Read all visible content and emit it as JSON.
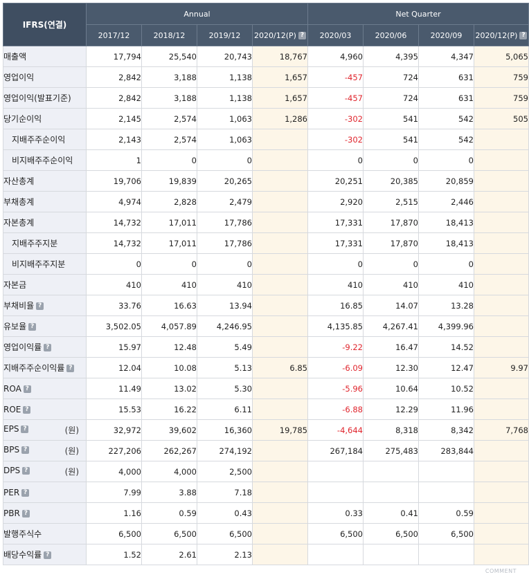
{
  "header": {
    "corner": "IFRS(연결)",
    "group_annual": "Annual",
    "group_quarter": "Net Quarter",
    "periods": [
      "2017/12",
      "2018/12",
      "2019/12",
      "2020/12(P)",
      "2020/03",
      "2020/06",
      "2020/09",
      "2020/12(P)"
    ],
    "projected_cols": [
      3,
      7
    ]
  },
  "rows": [
    {
      "label": "매출액",
      "values": [
        "17,794",
        "25,540",
        "20,743",
        "18,767",
        "4,960",
        "4,395",
        "4,347",
        "5,065"
      ]
    },
    {
      "label": "영업이익",
      "values": [
        "2,842",
        "3,188",
        "1,138",
        "1,657",
        "-457",
        "724",
        "631",
        "759"
      ]
    },
    {
      "label": "영업이익(발표기준)",
      "values": [
        "2,842",
        "3,188",
        "1,138",
        "1,657",
        "-457",
        "724",
        "631",
        "759"
      ]
    },
    {
      "label": "당기순이익",
      "values": [
        "2,145",
        "2,574",
        "1,063",
        "1,286",
        "-302",
        "541",
        "542",
        "505"
      ]
    },
    {
      "label": "지배주주순이익",
      "values": [
        "2,143",
        "2,574",
        "1,063",
        "",
        "-302",
        "541",
        "542",
        ""
      ],
      "sub": true
    },
    {
      "label": "비지배주주순이익",
      "values": [
        "1",
        "0",
        "0",
        "",
        "0",
        "0",
        "0",
        ""
      ],
      "sub": true
    },
    {
      "label": "자산총계",
      "values": [
        "19,706",
        "19,839",
        "20,265",
        "",
        "20,251",
        "20,385",
        "20,859",
        ""
      ]
    },
    {
      "label": "부채총계",
      "values": [
        "4,974",
        "2,828",
        "2,479",
        "",
        "2,920",
        "2,515",
        "2,446",
        ""
      ]
    },
    {
      "label": "자본총계",
      "values": [
        "14,732",
        "17,011",
        "17,786",
        "",
        "17,331",
        "17,870",
        "18,413",
        ""
      ]
    },
    {
      "label": "지배주주지분",
      "values": [
        "14,732",
        "17,011",
        "17,786",
        "",
        "17,331",
        "17,870",
        "18,413",
        ""
      ],
      "sub": true
    },
    {
      "label": "비지배주주지분",
      "values": [
        "0",
        "0",
        "0",
        "",
        "0",
        "0",
        "0",
        ""
      ],
      "sub": true
    },
    {
      "label": "자본금",
      "values": [
        "410",
        "410",
        "410",
        "",
        "410",
        "410",
        "410",
        ""
      ]
    },
    {
      "label": "부채비율",
      "help": true,
      "values": [
        "33.76",
        "16.63",
        "13.94",
        "",
        "16.85",
        "14.07",
        "13.28",
        ""
      ]
    },
    {
      "label": "유보율",
      "help": true,
      "values": [
        "3,502.05",
        "4,057.89",
        "4,246.95",
        "",
        "4,135.85",
        "4,267.41",
        "4,399.96",
        ""
      ]
    },
    {
      "label": "영업이익률",
      "help": true,
      "values": [
        "15.97",
        "12.48",
        "5.49",
        "",
        "-9.22",
        "16.47",
        "14.52",
        ""
      ]
    },
    {
      "label": "지배주주순이익률",
      "help": true,
      "values": [
        "12.04",
        "10.08",
        "5.13",
        "6.85",
        "-6.09",
        "12.30",
        "12.47",
        "9.97"
      ]
    },
    {
      "label": "ROA",
      "help": true,
      "values": [
        "11.49",
        "13.02",
        "5.30",
        "",
        "-5.96",
        "10.64",
        "10.52",
        ""
      ]
    },
    {
      "label": "ROE",
      "help": true,
      "values": [
        "15.53",
        "16.22",
        "6.11",
        "",
        "-6.88",
        "12.29",
        "11.96",
        ""
      ]
    },
    {
      "label": "EPS",
      "help": true,
      "unit": "(원)",
      "values": [
        "32,972",
        "39,602",
        "16,360",
        "19,785",
        "-4,644",
        "8,318",
        "8,342",
        "7,768"
      ]
    },
    {
      "label": "BPS",
      "help": true,
      "unit": "(원)",
      "values": [
        "227,206",
        "262,267",
        "274,192",
        "",
        "267,184",
        "275,483",
        "283,844",
        ""
      ]
    },
    {
      "label": "DPS",
      "help": true,
      "unit": "(원)",
      "values": [
        "4,000",
        "4,000",
        "2,500",
        "",
        "",
        "",
        "",
        ""
      ]
    },
    {
      "label": "PER",
      "help": true,
      "values": [
        "7.99",
        "3.88",
        "7.18",
        "",
        "",
        "",
        "",
        ""
      ]
    },
    {
      "label": "PBR",
      "help": true,
      "values": [
        "1.16",
        "0.59",
        "0.43",
        "",
        "0.33",
        "0.41",
        "0.59",
        ""
      ]
    },
    {
      "label": "발행주식수",
      "values": [
        "6,500",
        "6,500",
        "6,500",
        "",
        "6,500",
        "6,500",
        "6,500",
        ""
      ]
    },
    {
      "label": "배당수익률",
      "help": true,
      "values": [
        "1.52",
        "2.61",
        "2.13",
        "",
        "",
        "",
        "",
        ""
      ]
    }
  ],
  "help_icon": "help-icon",
  "footer": {
    "comment_label": "COMMENT"
  },
  "colors": {
    "header_bg": "#4a5a6d",
    "label_bg": "#eef0f6",
    "projected_bg": "#fdf6e8",
    "negative": "#e0262e"
  }
}
